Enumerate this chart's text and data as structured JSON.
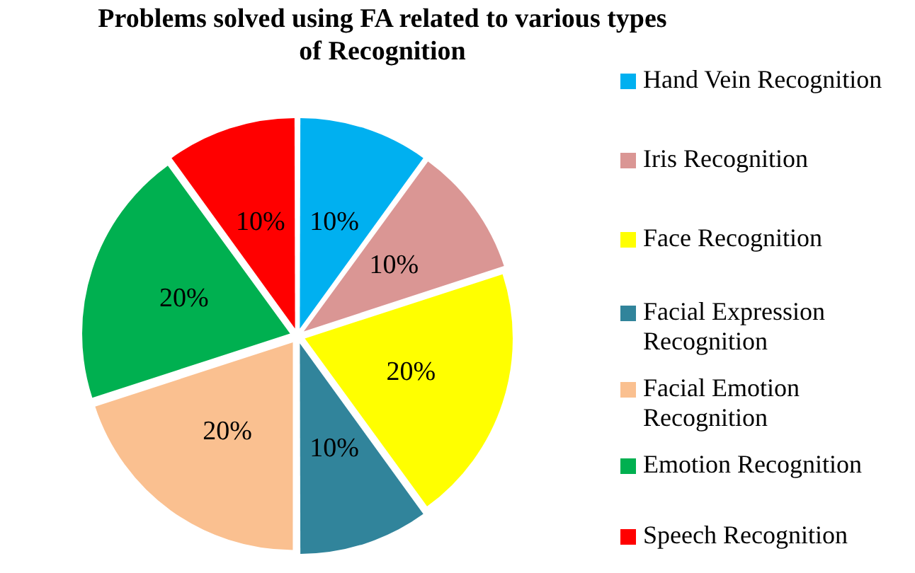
{
  "chart_data": {
    "type": "pie",
    "title": "Problems solved using FA related to various types of Recognition",
    "categories": [
      "Hand Vein Recognition",
      "Iris Recognition",
      "Face Recognition",
      "Facial Expression Recognition",
      "Facial Emotion Recognition",
      "Emotion Recognition",
      "Speech Recognition"
    ],
    "values": [
      10,
      10,
      20,
      10,
      20,
      20,
      10
    ],
    "colors": [
      "#00b0f0",
      "#da9694",
      "#ffff00",
      "#31849b",
      "#fac090",
      "#00b050",
      "#ff0000"
    ],
    "value_labels": [
      "10%",
      "10%",
      "20%",
      "10%",
      "20%",
      "20%",
      "10%"
    ],
    "legend": "right"
  }
}
